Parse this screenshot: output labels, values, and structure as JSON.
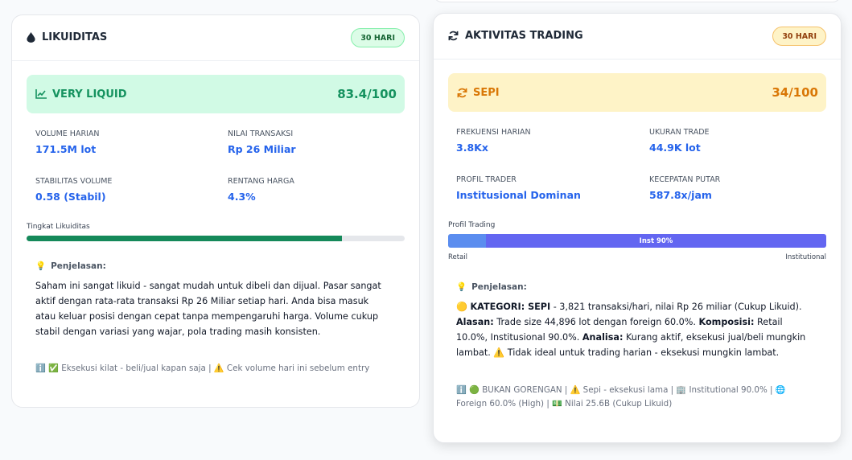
{
  "liquidity": {
    "title": "LIKUIDITAS",
    "badge": "30 HARI",
    "status": {
      "label": "VERY LIQUID",
      "score": "83.4/100"
    },
    "metrics": [
      {
        "label": "VOLUME HARIAN",
        "value": "171.5M lot"
      },
      {
        "label": "NILAI TRANSAKSI",
        "value": "Rp 26 Miliar"
      },
      {
        "label": "STABILITAS VOLUME",
        "value": "0.58 (Stabil)"
      },
      {
        "label": "RENTANG HARGA",
        "value": "4.3%"
      }
    ],
    "bar": {
      "label": "Tingkat Likuiditas",
      "fill": 83.4
    },
    "explanation": {
      "title": "Penjelasan:",
      "segments": [
        {
          "text": "Saham ini sangat likuid - sangat mudah untuk dibeli dan dijual. Pasar sangat aktif dengan rata-rata transaksi Rp 26 Miliar setiap hari. Anda bisa masuk atau keluar posisi dengan cepat tanpa mempengaruhi harga. Volume cukup stabil dengan variasi yang wajar, pola trading masih konsisten.",
          "bold": false
        }
      ]
    },
    "footer": "✅ Eksekusi kilat - beli/jual kapan saja | ⚠️ Cek volume hari ini sebelum entry"
  },
  "trading": {
    "title": "AKTIVITAS TRADING",
    "badge": "30 HARI",
    "status": {
      "label": "SEPI",
      "score": "34/100"
    },
    "metrics": [
      {
        "label": "FREKUENSI HARIAN",
        "value": "3.8Kx"
      },
      {
        "label": "UKURAN TRADE",
        "value": "44.9K lot"
      },
      {
        "label": "PROFIL TRADER",
        "value": "Institusional Dominan"
      },
      {
        "label": "KECEPATAN PUTAR",
        "value": "587.8x/jam"
      }
    ],
    "bar": {
      "label": "Profil Trading",
      "segments": [
        {
          "value": 10,
          "color": "#5b8def"
        },
        {
          "value": 90,
          "color": "#6366f1",
          "label": "Inst 90%"
        }
      ],
      "left_label": "Retail",
      "right_label": "Institutional"
    },
    "explanation": {
      "title": "Penjelasan:",
      "segments": [
        {
          "text": "🟡 ",
          "bold": false
        },
        {
          "text": "KATEGORI: SEPI",
          "bold": true
        },
        {
          "text": " - 3,821 transaksi/hari, nilai Rp 26 miliar (Cukup Likuid). ",
          "bold": false
        },
        {
          "text": "Alasan:",
          "bold": true
        },
        {
          "text": " Trade size 44,896 lot dengan foreign 60.0%. ",
          "bold": false
        },
        {
          "text": "Komposisi:",
          "bold": true
        },
        {
          "text": " Retail 10.0%, Institusional 90.0%. ",
          "bold": false
        },
        {
          "text": "Analisa:",
          "bold": true
        },
        {
          "text": " Kurang aktif, eksekusi jual/beli mungkin lambat. ⚠️ Tidak ideal untuk trading harian - eksekusi mungkin lambat.",
          "bold": false
        }
      ]
    },
    "footer": "🟢 BUKAN GORENGAN | ⚠️ Sepi - eksekusi lama | 🏢 Institutional 90.0% | 🌐 Foreign 60.0% (High) | 💵 Nilai 25.6B (Cukup Likuid)"
  }
}
